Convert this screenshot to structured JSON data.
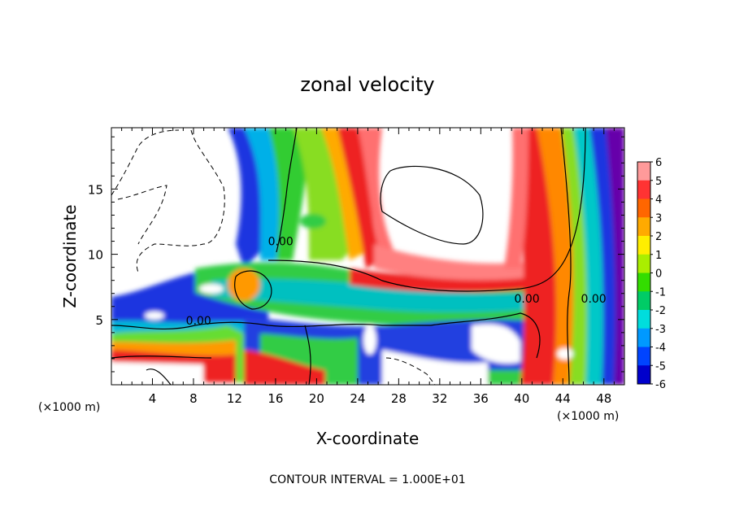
{
  "chart_data": {
    "type": "heatmap",
    "title": "zonal velocity",
    "xlabel": "X-coordinate",
    "ylabel": "Z-coordinate",
    "x_unit_left": "(×1000 m)",
    "x_unit_right": "(×1000 m)",
    "xlim": [
      0,
      50
    ],
    "ylim": [
      0,
      19.7
    ],
    "x_ticks": [
      4,
      8,
      12,
      16,
      20,
      24,
      28,
      32,
      36,
      40,
      44,
      48
    ],
    "y_ticks": [
      5,
      10,
      15
    ],
    "colorbar": {
      "min": -6,
      "max": 6,
      "labels": [
        6,
        5,
        4,
        3,
        2,
        1,
        0,
        -1,
        -2,
        -3,
        -4,
        -5,
        -6
      ]
    },
    "contour_labels": [
      {
        "text": "0.00",
        "x": 8.5,
        "y": 4.6
      },
      {
        "text": "0.00",
        "x": 16.5,
        "y": 10.7
      },
      {
        "text": "0.00",
        "x": 40.5,
        "y": 6.3
      },
      {
        "text": "0.00",
        "x": 47.0,
        "y": 6.3
      }
    ],
    "footnote": "CONTOUR INTERVAL = 1.000E+01",
    "grid": false,
    "legend": "right"
  }
}
